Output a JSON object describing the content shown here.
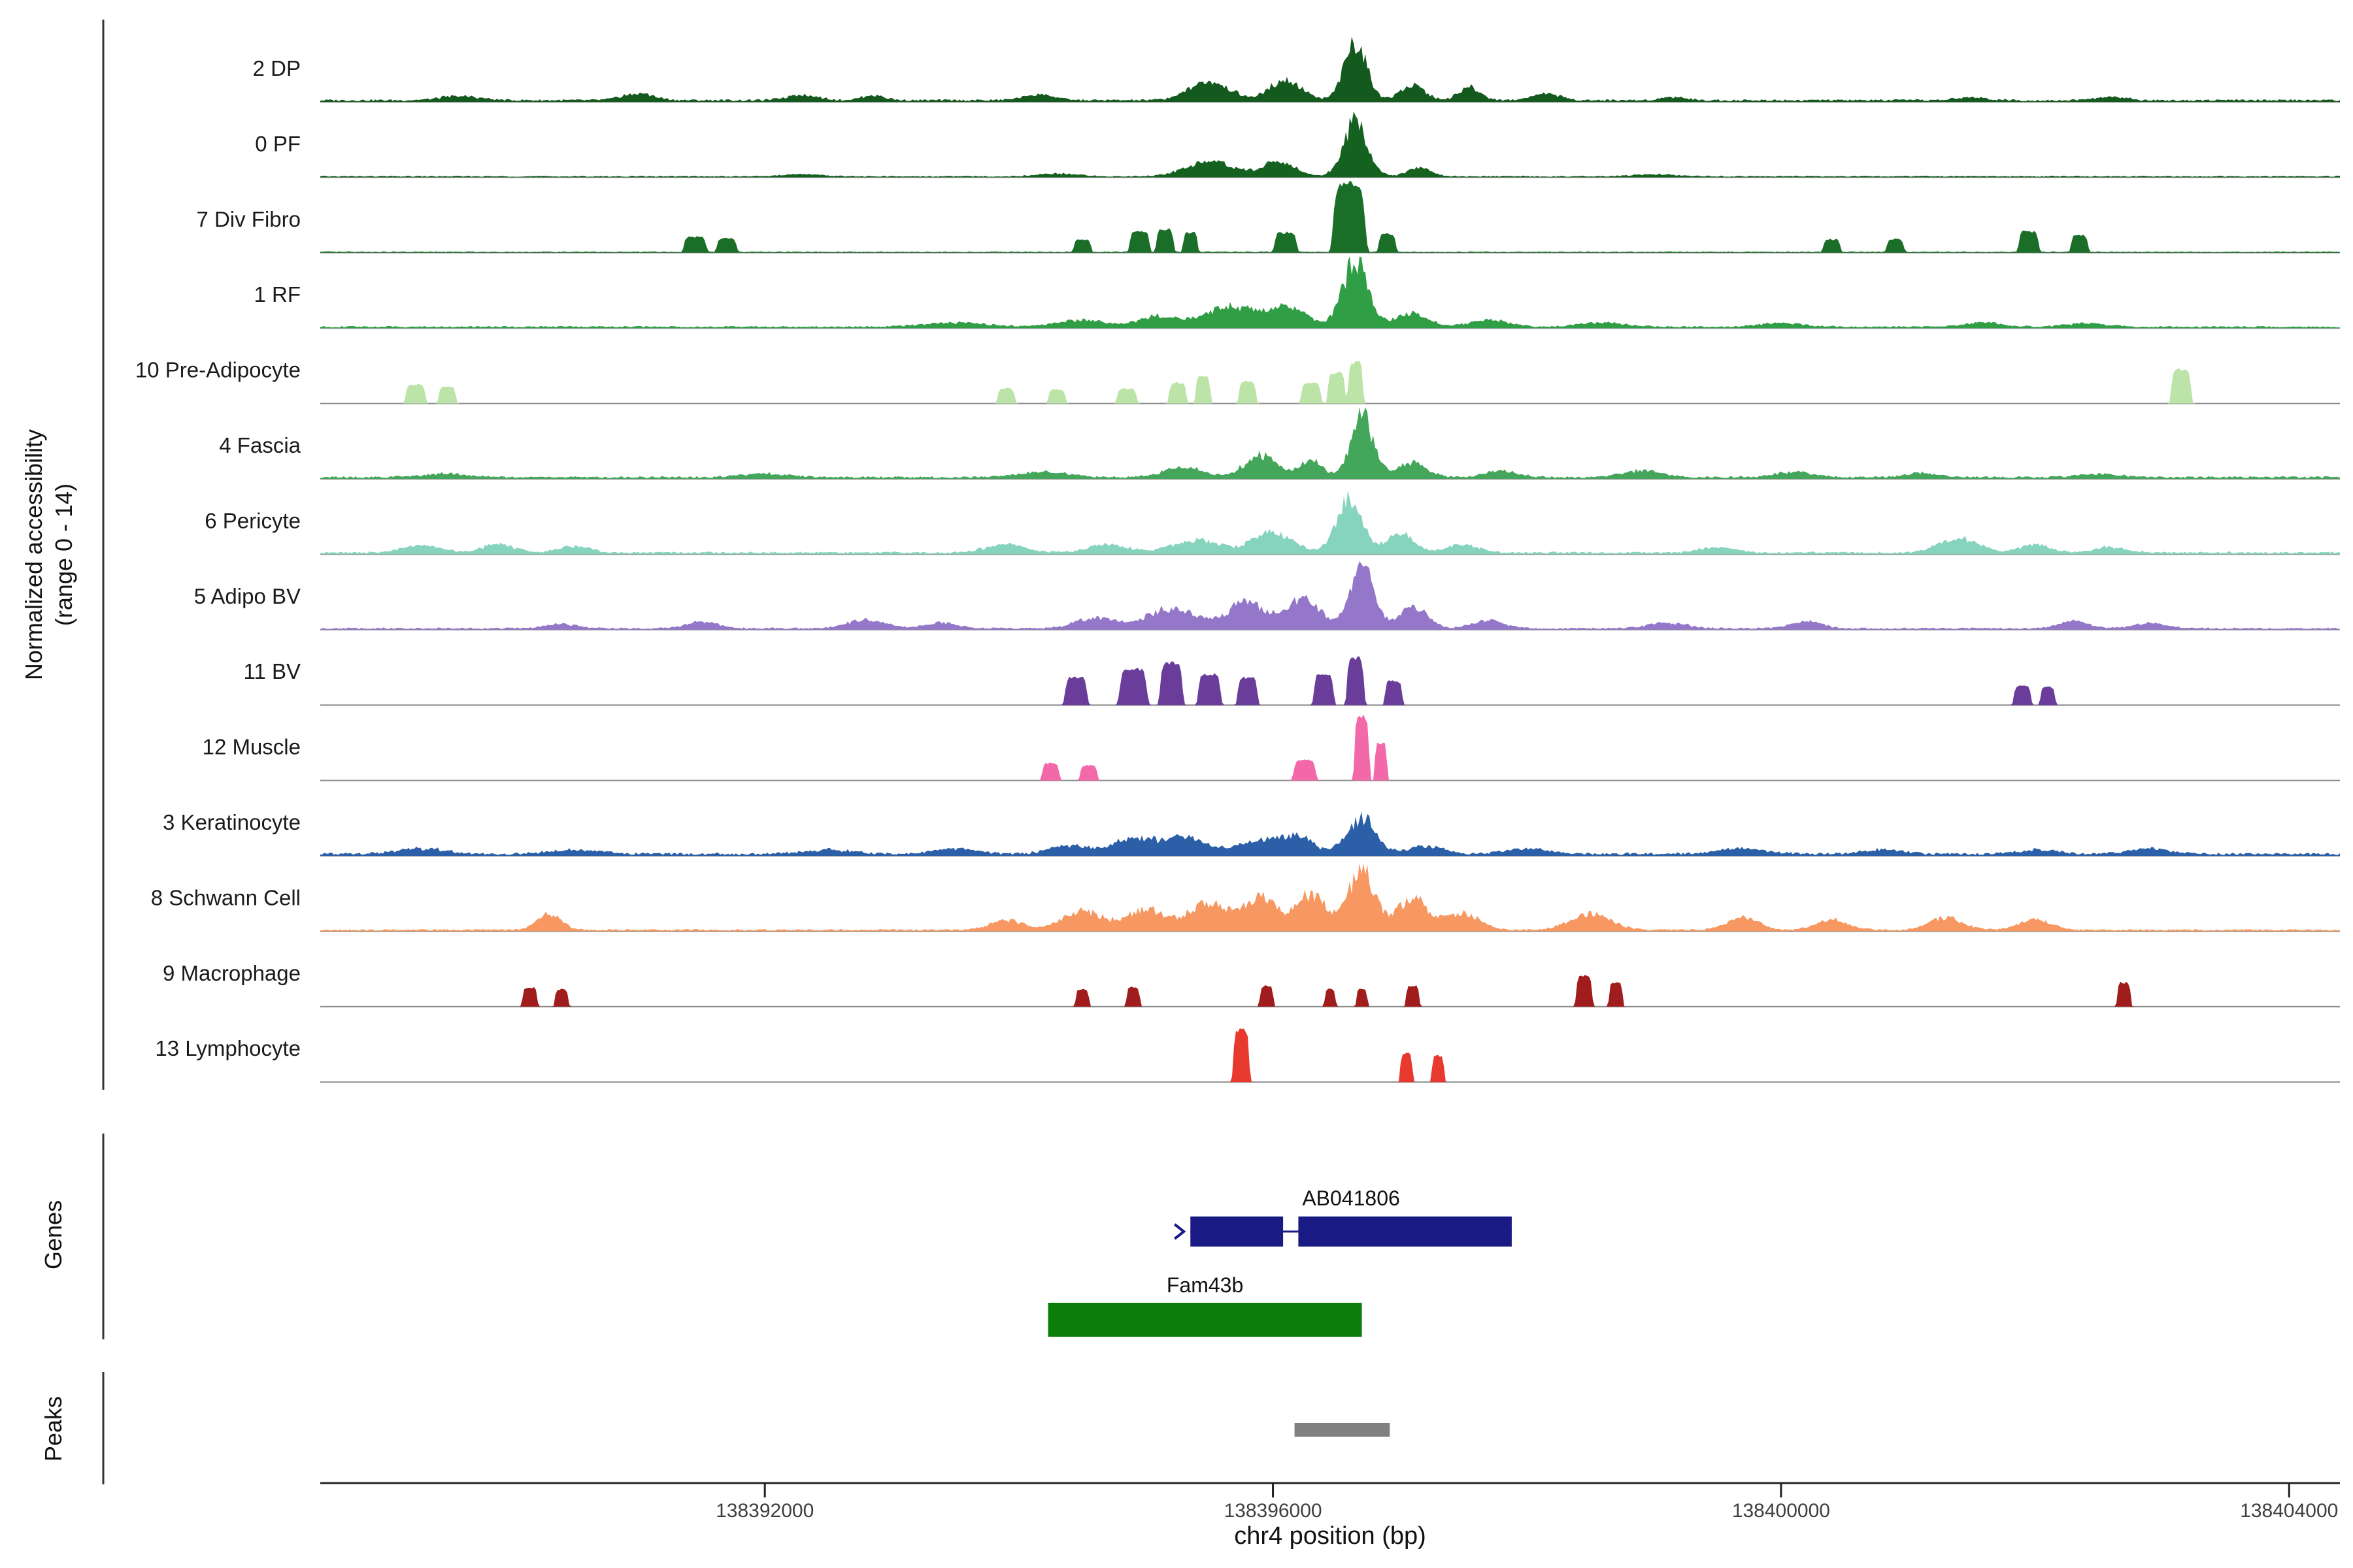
{
  "labels": {
    "y_axis_line1": "Normalized accessibility",
    "y_axis_line2": "(range 0 - 14)",
    "genes_section": "Genes",
    "peaks_section": "Peaks"
  },
  "chart_data": {
    "type": "area",
    "title": "",
    "xlabel": "chr4 position (bp)",
    "ylabel": "Normalized accessibility (range 0 - 14)",
    "x_range": [
      138388500,
      138404400
    ],
    "x_ticks": [
      138392000,
      138396000,
      138400000,
      138404000
    ],
    "x_tick_labels": [
      "138392000",
      "138396000",
      "138400000",
      "138404000"
    ],
    "y_range_per_track": [
      0,
      14
    ],
    "grid": false,
    "legend": "none",
    "tracks": [
      {
        "name": "2 DP",
        "color": "#14591d",
        "shape": "smooth",
        "floor": 0.025,
        "peaks": [
          [
            138389600,
            250,
            0.06
          ],
          [
            138391000,
            200,
            0.1
          ],
          [
            138392300,
            200,
            0.08
          ],
          [
            138392850,
            150,
            0.07
          ],
          [
            138394150,
            200,
            0.08
          ],
          [
            138395500,
            250,
            0.28
          ],
          [
            138396100,
            200,
            0.3
          ],
          [
            138396650,
            140,
            0.85
          ],
          [
            138397100,
            150,
            0.22
          ],
          [
            138397550,
            140,
            0.18
          ],
          [
            138398150,
            180,
            0.1
          ],
          [
            138399150,
            150,
            0.05
          ],
          [
            138401500,
            200,
            0.04
          ],
          [
            138402600,
            200,
            0.05
          ]
        ]
      },
      {
        "name": "0 PF",
        "color": "#15611f",
        "shape": "smooth",
        "floor": 0.015,
        "peaks": [
          [
            138392300,
            250,
            0.03
          ],
          [
            138394300,
            250,
            0.04
          ],
          [
            138395500,
            300,
            0.22
          ],
          [
            138396050,
            200,
            0.22
          ],
          [
            138396650,
            150,
            0.8
          ],
          [
            138397150,
            150,
            0.12
          ],
          [
            138399000,
            250,
            0.03
          ]
        ]
      },
      {
        "name": "7 Div Fibro",
        "color": "#1b6e28",
        "shape": "block",
        "floor": 0.012,
        "peaks": [
          [
            138391450,
            90,
            0.22
          ],
          [
            138391700,
            80,
            0.2
          ],
          [
            138394500,
            70,
            0.18
          ],
          [
            138394950,
            80,
            0.3
          ],
          [
            138395150,
            70,
            0.33
          ],
          [
            138395350,
            60,
            0.28
          ],
          [
            138396100,
            90,
            0.28
          ],
          [
            138396600,
            130,
            1.0
          ],
          [
            138396900,
            70,
            0.26
          ],
          [
            138400400,
            70,
            0.18
          ],
          [
            138400900,
            70,
            0.18
          ],
          [
            138401950,
            80,
            0.3
          ],
          [
            138402350,
            70,
            0.24
          ]
        ]
      },
      {
        "name": "1 RF",
        "color": "#2f9e44",
        "shape": "smooth",
        "floor": 0.02,
        "peaks": [
          [
            138393500,
            400,
            0.06
          ],
          [
            138394500,
            300,
            0.1
          ],
          [
            138395100,
            250,
            0.15
          ],
          [
            138395650,
            300,
            0.3
          ],
          [
            138396100,
            250,
            0.3
          ],
          [
            138396650,
            160,
            0.95
          ],
          [
            138397100,
            200,
            0.2
          ],
          [
            138397700,
            250,
            0.1
          ],
          [
            138398600,
            300,
            0.06
          ],
          [
            138400000,
            300,
            0.05
          ],
          [
            138401600,
            250,
            0.06
          ],
          [
            138402400,
            250,
            0.05
          ]
        ]
      },
      {
        "name": "10 Pre-Adipocyte",
        "color": "#bce3a8",
        "shape": "block",
        "floor": 0,
        "peaks": [
          [
            138389250,
            80,
            0.28
          ],
          [
            138389500,
            70,
            0.24
          ],
          [
            138393900,
            70,
            0.22
          ],
          [
            138394300,
            70,
            0.2
          ],
          [
            138394850,
            80,
            0.22
          ],
          [
            138395250,
            70,
            0.3
          ],
          [
            138395450,
            60,
            0.4
          ],
          [
            138395800,
            70,
            0.32
          ],
          [
            138396300,
            80,
            0.3
          ],
          [
            138396500,
            70,
            0.45
          ],
          [
            138396650,
            60,
            0.6
          ],
          [
            138403150,
            80,
            0.5
          ]
        ]
      },
      {
        "name": "4 Fascia",
        "color": "#44a65a",
        "shape": "smooth",
        "floor": 0.025,
        "peaks": [
          [
            138389500,
            300,
            0.05
          ],
          [
            138392000,
            300,
            0.05
          ],
          [
            138394200,
            300,
            0.08
          ],
          [
            138395300,
            250,
            0.15
          ],
          [
            138395900,
            200,
            0.32
          ],
          [
            138396300,
            150,
            0.25
          ],
          [
            138396700,
            140,
            0.9
          ],
          [
            138397100,
            180,
            0.22
          ],
          [
            138397800,
            200,
            0.1
          ],
          [
            138398900,
            250,
            0.1
          ],
          [
            138400100,
            250,
            0.08
          ],
          [
            138401100,
            200,
            0.06
          ],
          [
            138402500,
            250,
            0.05
          ]
        ]
      },
      {
        "name": "6 Pericyte",
        "color": "#86d4be",
        "shape": "smooth",
        "floor": 0.025,
        "peaks": [
          [
            138389300,
            250,
            0.1
          ],
          [
            138389900,
            200,
            0.12
          ],
          [
            138390500,
            200,
            0.1
          ],
          [
            138393900,
            250,
            0.12
          ],
          [
            138394700,
            250,
            0.12
          ],
          [
            138395400,
            300,
            0.18
          ],
          [
            138396000,
            250,
            0.3
          ],
          [
            138396600,
            160,
            0.75
          ],
          [
            138397000,
            160,
            0.3
          ],
          [
            138397500,
            200,
            0.12
          ],
          [
            138399500,
            200,
            0.08
          ],
          [
            138401400,
            250,
            0.22
          ],
          [
            138402000,
            200,
            0.12
          ],
          [
            138402600,
            200,
            0.08
          ]
        ]
      },
      {
        "name": "5 Adipo BV",
        "color": "#9577c9",
        "shape": "smooth",
        "floor": 0.02,
        "peaks": [
          [
            138390400,
            200,
            0.06
          ],
          [
            138391500,
            200,
            0.1
          ],
          [
            138392800,
            250,
            0.12
          ],
          [
            138393400,
            200,
            0.08
          ],
          [
            138394600,
            250,
            0.15
          ],
          [
            138395200,
            300,
            0.3
          ],
          [
            138395800,
            250,
            0.38
          ],
          [
            138396250,
            200,
            0.42
          ],
          [
            138396700,
            150,
            0.92
          ],
          [
            138397100,
            180,
            0.32
          ],
          [
            138397700,
            200,
            0.12
          ],
          [
            138399100,
            250,
            0.08
          ],
          [
            138400200,
            200,
            0.1
          ],
          [
            138402300,
            200,
            0.1
          ],
          [
            138402900,
            200,
            0.08
          ]
        ]
      },
      {
        "name": "11 BV",
        "color": "#6a3d9a",
        "shape": "block",
        "floor": 0,
        "peaks": [
          [
            138394450,
            90,
            0.4
          ],
          [
            138394900,
            110,
            0.52
          ],
          [
            138395200,
            90,
            0.62
          ],
          [
            138395500,
            90,
            0.45
          ],
          [
            138395800,
            80,
            0.4
          ],
          [
            138396400,
            80,
            0.45
          ],
          [
            138396650,
            70,
            0.68
          ],
          [
            138396950,
            70,
            0.35
          ],
          [
            138401900,
            70,
            0.28
          ],
          [
            138402100,
            60,
            0.26
          ]
        ]
      },
      {
        "name": "12 Muscle",
        "color": "#f368a8",
        "shape": "block",
        "floor": 0,
        "peaks": [
          [
            138394250,
            70,
            0.25
          ],
          [
            138394550,
            70,
            0.22
          ],
          [
            138396250,
            90,
            0.3
          ],
          [
            138396700,
            60,
            0.93
          ],
          [
            138396850,
            50,
            0.55
          ]
        ]
      },
      {
        "name": "3 Keratinocyte",
        "color": "#2b5fa8",
        "shape": "smooth",
        "floor": 0.03,
        "peaks": [
          [
            138389300,
            300,
            0.08
          ],
          [
            138390500,
            300,
            0.06
          ],
          [
            138392500,
            300,
            0.06
          ],
          [
            138393500,
            250,
            0.08
          ],
          [
            138394400,
            250,
            0.12
          ],
          [
            138394900,
            250,
            0.22
          ],
          [
            138395300,
            250,
            0.25
          ],
          [
            138395900,
            300,
            0.18
          ],
          [
            138396200,
            200,
            0.22
          ],
          [
            138396700,
            180,
            0.52
          ],
          [
            138397200,
            200,
            0.12
          ],
          [
            138398000,
            250,
            0.08
          ],
          [
            138399700,
            300,
            0.08
          ],
          [
            138400800,
            250,
            0.06
          ],
          [
            138402000,
            250,
            0.06
          ],
          [
            138402900,
            250,
            0.08
          ]
        ]
      },
      {
        "name": "8 Schwann Cell",
        "color": "#f79862",
        "shape": "smooth",
        "floor": 0.02,
        "peaks": [
          [
            138390300,
            150,
            0.25
          ],
          [
            138393900,
            200,
            0.15
          ],
          [
            138394500,
            250,
            0.28
          ],
          [
            138395000,
            250,
            0.3
          ],
          [
            138395500,
            250,
            0.4
          ],
          [
            138395900,
            200,
            0.48
          ],
          [
            138396300,
            200,
            0.52
          ],
          [
            138396700,
            160,
            0.88
          ],
          [
            138397100,
            200,
            0.45
          ],
          [
            138397500,
            200,
            0.25
          ],
          [
            138398500,
            250,
            0.25
          ],
          [
            138399700,
            200,
            0.18
          ],
          [
            138400400,
            200,
            0.15
          ],
          [
            138401300,
            200,
            0.18
          ],
          [
            138402000,
            200,
            0.15
          ]
        ]
      },
      {
        "name": "9 Macrophage",
        "color": "#a11c1c",
        "shape": "block",
        "floor": 0,
        "peaks": [
          [
            138390150,
            60,
            0.28
          ],
          [
            138390400,
            55,
            0.25
          ],
          [
            138394500,
            55,
            0.25
          ],
          [
            138394900,
            55,
            0.28
          ],
          [
            138395950,
            55,
            0.3
          ],
          [
            138396450,
            45,
            0.25
          ],
          [
            138396700,
            45,
            0.25
          ],
          [
            138397100,
            55,
            0.3
          ],
          [
            138398450,
            65,
            0.45
          ],
          [
            138398700,
            55,
            0.35
          ],
          [
            138402700,
            55,
            0.35
          ]
        ]
      },
      {
        "name": "13 Lymphocyte",
        "color": "#e8392f",
        "shape": "block",
        "floor": 0,
        "peaks": [
          [
            138395750,
            65,
            0.75
          ],
          [
            138397050,
            50,
            0.42
          ],
          [
            138397300,
            50,
            0.38
          ]
        ]
      }
    ],
    "genes": [
      {
        "name": "AB041806",
        "color": "#1a1a85",
        "start": 138395350,
        "end": 138397880,
        "exons": [
          [
            138395350,
            138396080
          ],
          [
            138396200,
            138397880
          ]
        ],
        "strand": "+"
      },
      {
        "name": "Fam43b",
        "color": "#0b7d0b",
        "start": 138394230,
        "end": 138396700,
        "exons": [
          [
            138394230,
            138396700
          ]
        ],
        "strand": ""
      }
    ],
    "peaks_track": [
      {
        "start": 138396170,
        "end": 138396920,
        "color": "#808080"
      }
    ]
  }
}
